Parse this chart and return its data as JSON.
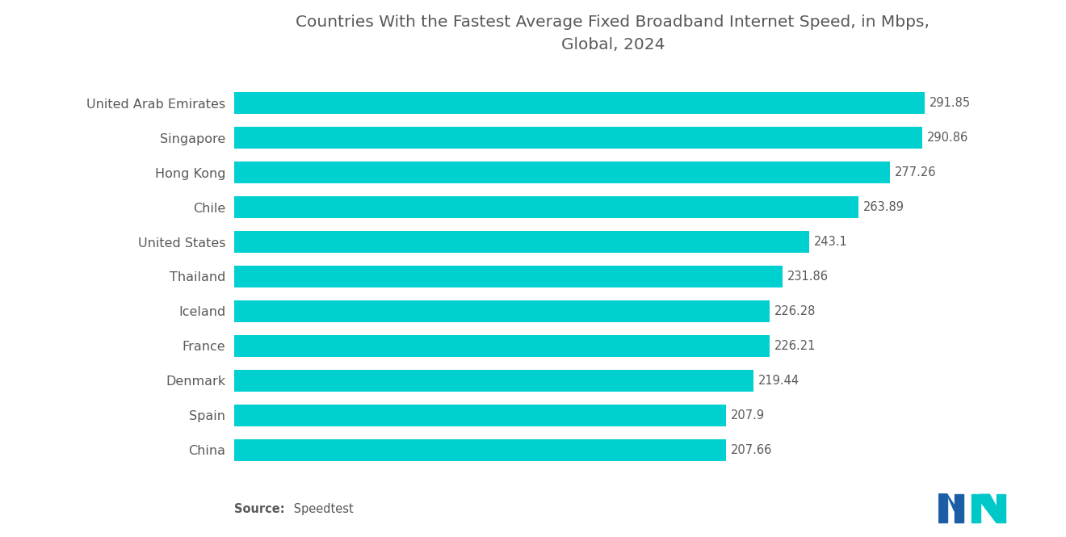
{
  "title": "Countries With the Fastest Average Fixed Broadband Internet Speed, in Mbps,\nGlobal, 2024",
  "countries": [
    "United Arab Emirates",
    "Singapore",
    "Hong Kong",
    "Chile",
    "United States",
    "Thailand",
    "Iceland",
    "France",
    "Denmark",
    "Spain",
    "China"
  ],
  "values": [
    291.85,
    290.86,
    277.26,
    263.89,
    243.1,
    231.86,
    226.28,
    226.21,
    219.44,
    207.9,
    207.66
  ],
  "bar_color": "#00D0D0",
  "background_color": "#ffffff",
  "title_color": "#595959",
  "label_color": "#595959",
  "value_color": "#595959",
  "source_bold": "Source:",
  "source_normal": " Speedtest",
  "xlim": [
    0,
    320
  ],
  "title_fontsize": 14.5,
  "label_fontsize": 11.5,
  "value_fontsize": 10.5,
  "source_fontsize": 10.5,
  "bar_height": 0.62
}
